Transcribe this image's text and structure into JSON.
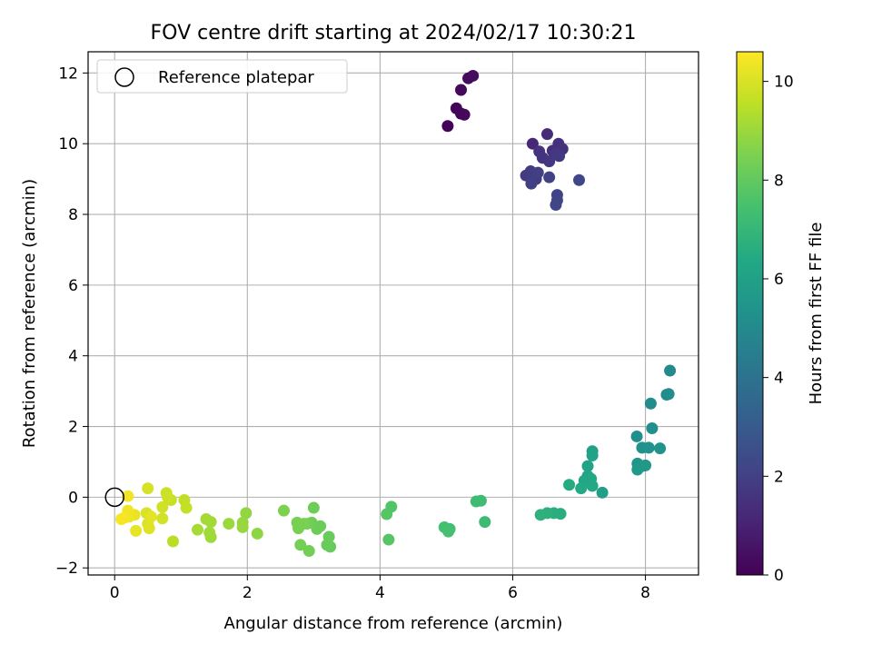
{
  "chart_data": {
    "type": "scatter",
    "title": "FOV centre drift starting at 2024/02/17 10:30:21",
    "xlabel": "Angular distance from reference (arcmin)",
    "ylabel": "Rotation from reference (arcmin)",
    "xlim": [
      -0.4,
      8.8
    ],
    "ylim": [
      -2.2,
      12.6
    ],
    "xticks": [
      0,
      2,
      4,
      6,
      8
    ],
    "yticks": [
      -2,
      0,
      2,
      4,
      6,
      8,
      10,
      12
    ],
    "grid": true,
    "legend": {
      "position": "top-left",
      "entries": [
        "Reference platepar"
      ]
    },
    "reference_point": {
      "x": 0,
      "y": 0
    },
    "colorbar": {
      "label": "Hours from first FF file",
      "min": 0,
      "max": 10.6,
      "ticks": [
        0,
        2,
        4,
        6,
        8,
        10
      ],
      "colormap": "viridis"
    },
    "points": [
      {
        "x": 5.02,
        "y": 10.5,
        "h": 0.05
      },
      {
        "x": 5.15,
        "y": 11.0,
        "h": 0.1
      },
      {
        "x": 5.22,
        "y": 10.85,
        "h": 0.15
      },
      {
        "x": 5.27,
        "y": 10.82,
        "h": 0.2
      },
      {
        "x": 5.22,
        "y": 11.52,
        "h": 0.25
      },
      {
        "x": 5.33,
        "y": 11.85,
        "h": 0.3
      },
      {
        "x": 5.4,
        "y": 11.92,
        "h": 0.35
      },
      {
        "x": 6.3,
        "y": 10.0,
        "h": 1.2
      },
      {
        "x": 6.52,
        "y": 10.27,
        "h": 1.3
      },
      {
        "x": 6.6,
        "y": 9.8,
        "h": 1.4
      },
      {
        "x": 6.69,
        "y": 10.0,
        "h": 1.45
      },
      {
        "x": 6.75,
        "y": 9.85,
        "h": 1.5
      },
      {
        "x": 6.4,
        "y": 9.78,
        "h": 1.55
      },
      {
        "x": 6.45,
        "y": 9.6,
        "h": 1.6
      },
      {
        "x": 6.55,
        "y": 9.5,
        "h": 1.65
      },
      {
        "x": 6.65,
        "y": 9.72,
        "h": 1.7
      },
      {
        "x": 6.7,
        "y": 9.65,
        "h": 1.75
      },
      {
        "x": 6.2,
        "y": 9.1,
        "h": 1.8
      },
      {
        "x": 6.27,
        "y": 9.22,
        "h": 1.85
      },
      {
        "x": 6.35,
        "y": 9.0,
        "h": 1.9
      },
      {
        "x": 6.38,
        "y": 9.18,
        "h": 1.95
      },
      {
        "x": 6.28,
        "y": 8.87,
        "h": 2.0
      },
      {
        "x": 6.55,
        "y": 9.05,
        "h": 2.05
      },
      {
        "x": 6.67,
        "y": 8.55,
        "h": 2.1
      },
      {
        "x": 6.67,
        "y": 8.4,
        "h": 2.15
      },
      {
        "x": 6.65,
        "y": 8.27,
        "h": 2.2
      },
      {
        "x": 7.0,
        "y": 8.97,
        "h": 2.25
      },
      {
        "x": 8.37,
        "y": 3.58,
        "h": 5.0
      },
      {
        "x": 8.32,
        "y": 2.9,
        "h": 5.05
      },
      {
        "x": 8.35,
        "y": 2.92,
        "h": 5.1
      },
      {
        "x": 8.08,
        "y": 2.65,
        "h": 5.15
      },
      {
        "x": 8.1,
        "y": 1.95,
        "h": 5.2
      },
      {
        "x": 7.87,
        "y": 1.72,
        "h": 5.25
      },
      {
        "x": 7.95,
        "y": 1.4,
        "h": 5.3
      },
      {
        "x": 8.05,
        "y": 1.4,
        "h": 5.35
      },
      {
        "x": 8.22,
        "y": 1.38,
        "h": 5.4
      },
      {
        "x": 7.88,
        "y": 0.95,
        "h": 5.45
      },
      {
        "x": 7.9,
        "y": 0.85,
        "h": 5.5
      },
      {
        "x": 7.95,
        "y": 0.88,
        "h": 5.55
      },
      {
        "x": 8.0,
        "y": 0.9,
        "h": 5.6
      },
      {
        "x": 7.88,
        "y": 0.78,
        "h": 5.65
      },
      {
        "x": 7.35,
        "y": 0.13,
        "h": 6.0
      },
      {
        "x": 7.2,
        "y": 1.3,
        "h": 6.05
      },
      {
        "x": 7.2,
        "y": 1.18,
        "h": 6.1
      },
      {
        "x": 7.13,
        "y": 0.88,
        "h": 6.15
      },
      {
        "x": 7.13,
        "y": 0.6,
        "h": 6.2
      },
      {
        "x": 7.08,
        "y": 0.47,
        "h": 6.25
      },
      {
        "x": 7.18,
        "y": 0.52,
        "h": 6.3
      },
      {
        "x": 7.2,
        "y": 0.32,
        "h": 6.35
      },
      {
        "x": 7.03,
        "y": 0.25,
        "h": 6.4
      },
      {
        "x": 6.85,
        "y": 0.35,
        "h": 6.5
      },
      {
        "x": 6.72,
        "y": -0.47,
        "h": 6.6
      },
      {
        "x": 6.62,
        "y": -0.45,
        "h": 6.65
      },
      {
        "x": 6.52,
        "y": -0.45,
        "h": 6.7
      },
      {
        "x": 6.42,
        "y": -0.5,
        "h": 6.75
      },
      {
        "x": 5.58,
        "y": -0.7,
        "h": 7.2
      },
      {
        "x": 5.52,
        "y": -0.1,
        "h": 7.25
      },
      {
        "x": 5.45,
        "y": -0.12,
        "h": 7.3
      },
      {
        "x": 5.05,
        "y": -0.9,
        "h": 7.35
      },
      {
        "x": 4.97,
        "y": -0.85,
        "h": 7.4
      },
      {
        "x": 5.03,
        "y": -0.97,
        "h": 7.45
      },
      {
        "x": 4.17,
        "y": -0.27,
        "h": 7.7
      },
      {
        "x": 4.1,
        "y": -0.48,
        "h": 7.75
      },
      {
        "x": 4.13,
        "y": -1.2,
        "h": 7.8
      },
      {
        "x": 3.25,
        "y": -1.4,
        "h": 8.1
      },
      {
        "x": 3.2,
        "y": -1.35,
        "h": 8.12
      },
      {
        "x": 3.23,
        "y": -1.12,
        "h": 8.15
      },
      {
        "x": 3.1,
        "y": -0.82,
        "h": 8.18
      },
      {
        "x": 3.05,
        "y": -0.9,
        "h": 8.2
      },
      {
        "x": 3.0,
        "y": -0.3,
        "h": 8.23
      },
      {
        "x": 2.97,
        "y": -0.72,
        "h": 8.26
      },
      {
        "x": 2.9,
        "y": -0.75,
        "h": 8.3
      },
      {
        "x": 2.93,
        "y": -1.52,
        "h": 8.33
      },
      {
        "x": 2.8,
        "y": -1.35,
        "h": 8.36
      },
      {
        "x": 2.75,
        "y": -0.72,
        "h": 8.4
      },
      {
        "x": 2.77,
        "y": -0.88,
        "h": 8.43
      },
      {
        "x": 2.85,
        "y": -0.75,
        "h": 8.46
      },
      {
        "x": 2.55,
        "y": -0.38,
        "h": 8.5
      },
      {
        "x": 2.15,
        "y": -1.03,
        "h": 8.8
      },
      {
        "x": 1.98,
        "y": -0.45,
        "h": 8.85
      },
      {
        "x": 1.93,
        "y": -0.72,
        "h": 8.9
      },
      {
        "x": 1.93,
        "y": -0.85,
        "h": 8.95
      },
      {
        "x": 1.72,
        "y": -0.75,
        "h": 9.0
      },
      {
        "x": 1.45,
        "y": -1.13,
        "h": 9.05
      },
      {
        "x": 1.43,
        "y": -1.0,
        "h": 9.1
      },
      {
        "x": 1.45,
        "y": -0.7,
        "h": 9.12
      },
      {
        "x": 1.38,
        "y": -0.62,
        "h": 9.15
      },
      {
        "x": 1.25,
        "y": -0.92,
        "h": 9.18
      },
      {
        "x": 0.88,
        "y": -1.25,
        "h": 9.5
      },
      {
        "x": 1.05,
        "y": -0.08,
        "h": 9.6
      },
      {
        "x": 1.08,
        "y": -0.3,
        "h": 9.65
      },
      {
        "x": 0.85,
        "y": -0.08,
        "h": 9.7
      },
      {
        "x": 0.78,
        "y": 0.12,
        "h": 9.75
      },
      {
        "x": 0.8,
        "y": 0.0,
        "h": 9.8
      },
      {
        "x": 0.72,
        "y": -0.28,
        "h": 9.85
      },
      {
        "x": 0.72,
        "y": -0.6,
        "h": 9.9
      },
      {
        "x": 0.5,
        "y": 0.25,
        "h": 9.95
      },
      {
        "x": 0.48,
        "y": -0.45,
        "h": 10.0
      },
      {
        "x": 0.5,
        "y": -0.75,
        "h": 10.05
      },
      {
        "x": 0.52,
        "y": -0.88,
        "h": 10.1
      },
      {
        "x": 0.55,
        "y": -0.55,
        "h": 10.15
      },
      {
        "x": 0.32,
        "y": -0.95,
        "h": 10.2
      },
      {
        "x": 0.3,
        "y": -0.5,
        "h": 10.25
      },
      {
        "x": 0.22,
        "y": -0.55,
        "h": 10.3
      },
      {
        "x": 0.2,
        "y": -0.38,
        "h": 10.35
      },
      {
        "x": 0.2,
        "y": 0.03,
        "h": 10.4
      },
      {
        "x": 0.15,
        "y": -0.58,
        "h": 10.45
      },
      {
        "x": 0.1,
        "y": -0.62,
        "h": 10.5
      }
    ]
  }
}
